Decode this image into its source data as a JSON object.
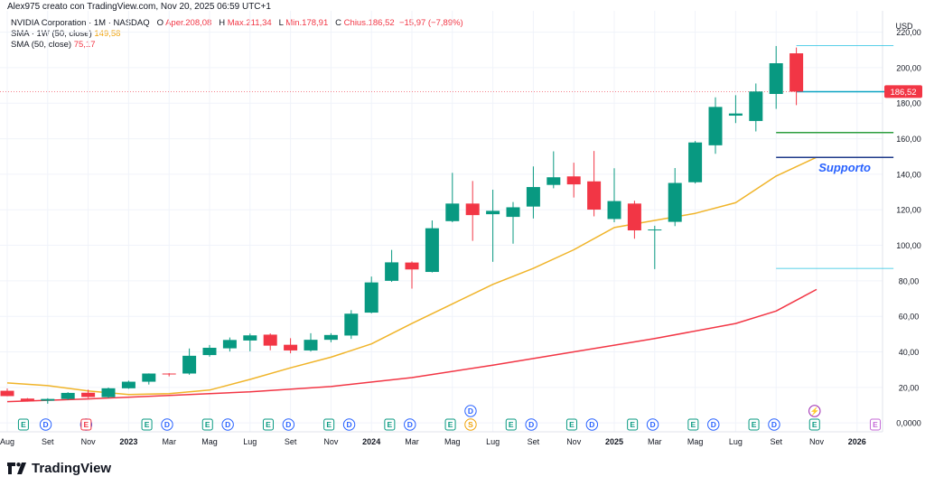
{
  "header": {
    "attribution": "Alex975 creato con TradingView.com, Nov 20, 2025 06:59 UTC+1"
  },
  "legend": {
    "symbol": "NVIDIA Corporation · 1M · NASDAQ",
    "open_label": "O",
    "open_value": "Aper.208,08",
    "high_label": "H",
    "high_value": "Max.211,34",
    "low_label": "L",
    "low_value": "Min.178,91",
    "close_label": "C",
    "close_value": "Chius.186,52",
    "change_value": "−15,97 (−7,89%)",
    "sma1_label": "SMA · 1W (50, close)",
    "sma1_value": "149,58",
    "sma2_label": "SMA (50, close)",
    "sma2_value": "75,17"
  },
  "logo": {
    "text": "TradingView"
  },
  "colors": {
    "up": "#089981",
    "down": "#f23645",
    "sma_fast": "#f0b429",
    "sma_slow": "#f23645",
    "support": "#2962ff"
  },
  "chart_data": {
    "type": "candlestick",
    "title": "NVIDIA Corporation · 1M · NASDAQ",
    "currency": "USD",
    "ylim": [
      -5,
      232
    ],
    "y_ticks": [
      "0,0000",
      "20,00",
      "40,00",
      "60,00",
      "80,00",
      "100,00",
      "120,00",
      "140,00",
      "160,00",
      "180,00",
      "200,00",
      "220,00"
    ],
    "y_tick_values": [
      0,
      20,
      40,
      60,
      80,
      100,
      120,
      140,
      160,
      180,
      200,
      220
    ],
    "x_labels": [
      {
        "i": 0,
        "label": "Aug"
      },
      {
        "i": 2,
        "label": "Set"
      },
      {
        "i": 4,
        "label": "Nov"
      },
      {
        "i": 6,
        "label": "2023"
      },
      {
        "i": 8,
        "label": "Mar"
      },
      {
        "i": 10,
        "label": "Mag"
      },
      {
        "i": 12,
        "label": "Lug"
      },
      {
        "i": 14,
        "label": "Set"
      },
      {
        "i": 16,
        "label": "Nov"
      },
      {
        "i": 18,
        "label": "2024"
      },
      {
        "i": 20,
        "label": "Mar"
      },
      {
        "i": 22,
        "label": "Mag"
      },
      {
        "i": 24,
        "label": "Lug"
      },
      {
        "i": 26,
        "label": "Set"
      },
      {
        "i": 28,
        "label": "Nov"
      },
      {
        "i": 30,
        "label": "2025"
      },
      {
        "i": 32,
        "label": "Mar"
      },
      {
        "i": 34,
        "label": "Mag"
      },
      {
        "i": 36,
        "label": "Lug"
      },
      {
        "i": 38,
        "label": "Set"
      },
      {
        "i": 40,
        "label": "Nov"
      },
      {
        "i": 42,
        "label": "2026"
      }
    ],
    "candles": [
      {
        "m": "2022-08",
        "o": 18.1,
        "h": 19.4,
        "l": 15.0,
        "c": 15.1
      },
      {
        "m": "2022-09",
        "o": 13.7,
        "h": 14.0,
        "l": 12.0,
        "c": 12.2
      },
      {
        "m": "2022-10",
        "o": 12.5,
        "h": 13.9,
        "l": 10.8,
        "c": 13.5
      },
      {
        "m": "2022-11",
        "o": 13.5,
        "h": 17.3,
        "l": 13.0,
        "c": 16.9
      },
      {
        "m": "2022-12",
        "o": 17.0,
        "h": 18.7,
        "l": 14.0,
        "c": 14.6
      },
      {
        "m": "2023-01",
        "o": 14.5,
        "h": 19.9,
        "l": 14.0,
        "c": 19.5
      },
      {
        "m": "2023-02",
        "o": 19.5,
        "h": 23.8,
        "l": 19.2,
        "c": 23.2
      },
      {
        "m": "2023-03",
        "o": 23.2,
        "h": 27.9,
        "l": 21.6,
        "c": 27.8
      },
      {
        "m": "2023-04",
        "o": 27.8,
        "h": 28.0,
        "l": 26.2,
        "c": 27.7
      },
      {
        "m": "2023-05",
        "o": 27.8,
        "h": 41.9,
        "l": 27.1,
        "c": 37.8
      },
      {
        "m": "2023-06",
        "o": 38.2,
        "h": 43.9,
        "l": 37.3,
        "c": 42.3
      },
      {
        "m": "2023-07",
        "o": 42.0,
        "h": 48.1,
        "l": 40.2,
        "c": 46.7
      },
      {
        "m": "2023-08",
        "o": 46.4,
        "h": 50.3,
        "l": 40.3,
        "c": 49.3
      },
      {
        "m": "2023-09",
        "o": 49.7,
        "h": 50.4,
        "l": 40.9,
        "c": 43.5
      },
      {
        "m": "2023-10",
        "o": 44.0,
        "h": 47.7,
        "l": 39.2,
        "c": 40.8
      },
      {
        "m": "2023-11",
        "o": 40.8,
        "h": 50.5,
        "l": 40.2,
        "c": 46.8
      },
      {
        "m": "2023-12",
        "o": 46.8,
        "h": 50.5,
        "l": 45.4,
        "c": 49.5
      },
      {
        "m": "2024-01",
        "o": 49.2,
        "h": 63.5,
        "l": 47.3,
        "c": 61.5
      },
      {
        "m": "2024-02",
        "o": 62.1,
        "h": 82.4,
        "l": 61.7,
        "c": 79.1
      },
      {
        "m": "2024-03",
        "o": 80.0,
        "h": 97.4,
        "l": 79.4,
        "c": 90.4
      },
      {
        "m": "2024-04",
        "o": 90.3,
        "h": 90.9,
        "l": 75.6,
        "c": 86.4
      },
      {
        "m": "2024-05",
        "o": 85.0,
        "h": 114.0,
        "l": 84.7,
        "c": 109.6
      },
      {
        "m": "2024-06",
        "o": 113.6,
        "h": 140.8,
        "l": 113.0,
        "c": 123.5
      },
      {
        "m": "2024-07",
        "o": 123.5,
        "h": 136.2,
        "l": 102.5,
        "c": 117.0
      },
      {
        "m": "2024-08",
        "o": 117.5,
        "h": 131.3,
        "l": 90.7,
        "c": 119.4
      },
      {
        "m": "2024-09",
        "o": 116.0,
        "h": 124.4,
        "l": 100.9,
        "c": 121.4
      },
      {
        "m": "2024-10",
        "o": 121.8,
        "h": 144.4,
        "l": 115.1,
        "c": 132.8
      },
      {
        "m": "2024-11",
        "o": 134.0,
        "h": 152.9,
        "l": 132.1,
        "c": 138.3
      },
      {
        "m": "2024-12",
        "o": 138.8,
        "h": 146.5,
        "l": 126.9,
        "c": 134.3
      },
      {
        "m": "2025-01",
        "o": 136.0,
        "h": 153.1,
        "l": 116.3,
        "c": 120.1
      },
      {
        "m": "2025-02",
        "o": 114.8,
        "h": 143.4,
        "l": 113.0,
        "c": 124.9
      },
      {
        "m": "2025-03",
        "o": 123.5,
        "h": 125.1,
        "l": 103.7,
        "c": 108.4
      },
      {
        "m": "2025-04",
        "o": 108.5,
        "h": 111.0,
        "l": 86.6,
        "c": 108.9
      },
      {
        "m": "2025-05",
        "o": 113.2,
        "h": 143.5,
        "l": 110.8,
        "c": 135.1
      },
      {
        "m": "2025-06",
        "o": 135.5,
        "h": 158.7,
        "l": 134.8,
        "c": 157.9
      },
      {
        "m": "2025-07",
        "o": 156.3,
        "h": 183.3,
        "l": 151.5,
        "c": 177.9
      },
      {
        "m": "2025-08",
        "o": 173.0,
        "h": 184.5,
        "l": 168.8,
        "c": 174.2
      },
      {
        "m": "2025-09",
        "o": 170.0,
        "h": 191.1,
        "l": 164.1,
        "c": 186.6
      },
      {
        "m": "2025-10",
        "o": 185.2,
        "h": 212.2,
        "l": 176.8,
        "c": 202.5
      },
      {
        "m": "2025-11",
        "o": 208.08,
        "h": 211.34,
        "l": 178.91,
        "c": 186.52
      }
    ],
    "sma_fast": {
      "name": "SMA · 1W (50, close)",
      "points": [
        [
          0,
          22.5
        ],
        [
          2,
          21.0
        ],
        [
          4,
          18.0
        ],
        [
          6,
          16.0
        ],
        [
          8,
          16.5
        ],
        [
          10,
          18.5
        ],
        [
          12,
          24.5
        ],
        [
          14,
          31.0
        ],
        [
          16,
          37.0
        ],
        [
          18,
          44.5
        ],
        [
          20,
          56.0
        ],
        [
          22,
          67.0
        ],
        [
          24,
          78.0
        ],
        [
          26,
          87.0
        ],
        [
          28,
          97.5
        ],
        [
          30,
          110.0
        ],
        [
          32,
          114.0
        ],
        [
          34,
          118.0
        ],
        [
          36,
          124.0
        ],
        [
          38,
          139.0
        ],
        [
          40,
          149.58
        ]
      ]
    },
    "sma_slow": {
      "name": "SMA (50, close)",
      "points": [
        [
          0,
          12.0
        ],
        [
          4,
          13.5
        ],
        [
          8,
          15.5
        ],
        [
          12,
          17.5
        ],
        [
          16,
          20.5
        ],
        [
          20,
          25.5
        ],
        [
          24,
          32.5
        ],
        [
          28,
          40.0
        ],
        [
          32,
          47.5
        ],
        [
          36,
          56.0
        ],
        [
          38,
          63.0
        ],
        [
          40,
          75.17
        ]
      ]
    },
    "levels": [
      {
        "name": "top-level",
        "value": 212.5,
        "from": 39.0,
        "to": 43.8,
        "color": "#22c1e0",
        "width": 0.8
      },
      {
        "name": "close-level",
        "value": 186.5,
        "from": 39.0,
        "to": 43.8,
        "color": "#0aa3c2",
        "width": 1.5
      },
      {
        "name": "green-level",
        "value": 163.5,
        "from": 38.0,
        "to": 43.8,
        "color": "#2e9e3f",
        "width": 1.5
      },
      {
        "name": "support-level",
        "value": 149.5,
        "from": 38.0,
        "to": 43.8,
        "color": "#1e3a8a",
        "width": 1.5
      },
      {
        "name": "bottom-level",
        "value": 87.0,
        "from": 38.0,
        "to": 43.8,
        "color": "#22c1e0",
        "width": 0.8
      }
    ],
    "support_label": "Supporto",
    "last_price_label": "186,52",
    "last_price_value": 186.52,
    "events": [
      {
        "i": 0.8,
        "t": "E",
        "kind": "earn-past"
      },
      {
        "i": 1.9,
        "t": "D",
        "kind": "div"
      },
      {
        "i": 3.9,
        "t": "D",
        "kind": "div"
      },
      {
        "i": 3.9,
        "t": "E",
        "kind": "earn-red"
      },
      {
        "i": 6.9,
        "t": "E",
        "kind": "earn-past"
      },
      {
        "i": 7.9,
        "t": "D",
        "kind": "div"
      },
      {
        "i": 9.9,
        "t": "E",
        "kind": "earn-past"
      },
      {
        "i": 10.9,
        "t": "D",
        "kind": "div"
      },
      {
        "i": 12.9,
        "t": "E",
        "kind": "earn-past"
      },
      {
        "i": 13.9,
        "t": "D",
        "kind": "div"
      },
      {
        "i": 15.9,
        "t": "E",
        "kind": "earn-past"
      },
      {
        "i": 16.9,
        "t": "D",
        "kind": "div"
      },
      {
        "i": 18.9,
        "t": "E",
        "kind": "earn-past"
      },
      {
        "i": 19.9,
        "t": "D",
        "kind": "div"
      },
      {
        "i": 21.9,
        "t": "E",
        "kind": "earn-past"
      },
      {
        "i": 22.9,
        "t": "D",
        "kind": "div",
        "row": "upper"
      },
      {
        "i": 22.9,
        "t": "S",
        "kind": "split"
      },
      {
        "i": 24.9,
        "t": "E",
        "kind": "earn-past"
      },
      {
        "i": 25.9,
        "t": "D",
        "kind": "div"
      },
      {
        "i": 27.9,
        "t": "E",
        "kind": "earn-past"
      },
      {
        "i": 28.9,
        "t": "D",
        "kind": "div"
      },
      {
        "i": 30.9,
        "t": "E",
        "kind": "earn-past"
      },
      {
        "i": 31.9,
        "t": "D",
        "kind": "div"
      },
      {
        "i": 33.9,
        "t": "E",
        "kind": "earn-past"
      },
      {
        "i": 34.9,
        "t": "D",
        "kind": "div"
      },
      {
        "i": 36.9,
        "t": "E",
        "kind": "earn-past"
      },
      {
        "i": 37.9,
        "t": "D",
        "kind": "div"
      },
      {
        "i": 39.9,
        "t": "E",
        "kind": "earn-past"
      },
      {
        "i": 39.9,
        "t": "⚡",
        "kind": "flash",
        "row": "upper"
      },
      {
        "i": 42.9,
        "t": "E",
        "kind": "earn-future"
      }
    ]
  }
}
